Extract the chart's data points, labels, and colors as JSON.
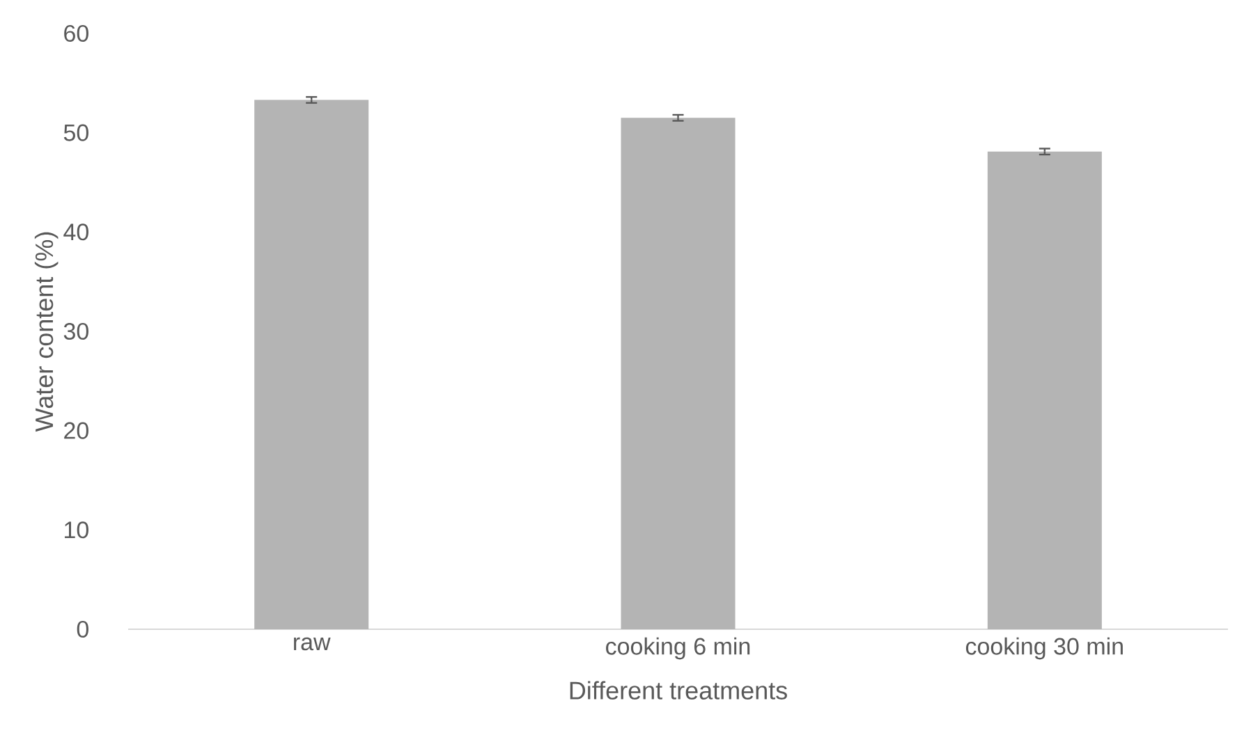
{
  "chart_data": {
    "type": "bar",
    "xlabel": "Different treatments",
    "ylabel": "Water content (%)",
    "categories": [
      "raw",
      "cooking 6 min",
      "cooking 30 min"
    ],
    "values": [
      53.3,
      51.5,
      48.1
    ],
    "errors": [
      0.3,
      0.3,
      0.3
    ],
    "color": "#b4b4b4",
    "ylim": [
      0,
      60
    ],
    "yticks": [
      0,
      10,
      20,
      30,
      40,
      50,
      60
    ],
    "grid": false
  }
}
